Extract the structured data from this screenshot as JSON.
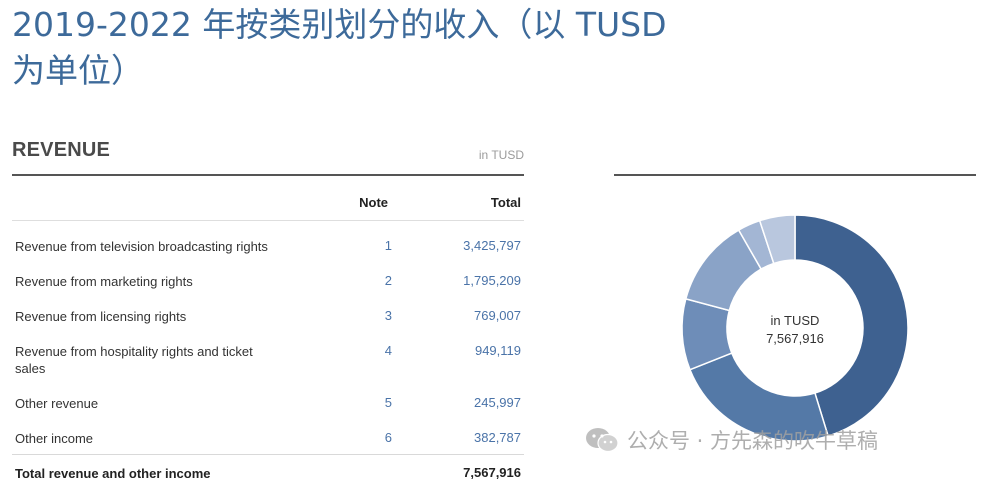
{
  "title": "2019-2022 年按类别划分的收入（以 TUSD 为单位）",
  "table": {
    "heading": "REVENUE",
    "unit": "in TUSD",
    "columns": {
      "note": "Note",
      "total": "Total"
    },
    "rows": [
      {
        "label": "Revenue from television broadcasting rights",
        "note": "1",
        "total": "3,425,797"
      },
      {
        "label": "Revenue from marketing rights",
        "note": "2",
        "total": "1,795,209"
      },
      {
        "label": "Revenue from licensing rights",
        "note": "3",
        "total": "769,007"
      },
      {
        "label": "Revenue from hospitality rights and ticket sales",
        "note": "4",
        "total": "949,119"
      },
      {
        "label": "Other revenue",
        "note": "5",
        "total": "245,997"
      },
      {
        "label": "Other income",
        "note": "6",
        "total": "382,787"
      }
    ],
    "total_row": {
      "label": "Total revenue and other income",
      "total": "7,567,916"
    }
  },
  "donut": {
    "center_unit": "in TUSD",
    "center_total": "7,567,916"
  },
  "watermark": "公众号 · 方先森的吹牛草稿",
  "chart_data": {
    "type": "pie",
    "categories": [
      "Revenue from television broadcasting rights",
      "Revenue from marketing rights",
      "Revenue from licensing rights",
      "Revenue from hospitality rights and ticket sales",
      "Other revenue",
      "Other income"
    ],
    "values": [
      3425797,
      1795209,
      769007,
      949119,
      245997,
      382787
    ],
    "colors": [
      "#3e6190",
      "#5479a7",
      "#6e8db8",
      "#8aa3c7",
      "#a3b6d4",
      "#b9c7de"
    ],
    "total": 7567916,
    "style": "donut"
  }
}
